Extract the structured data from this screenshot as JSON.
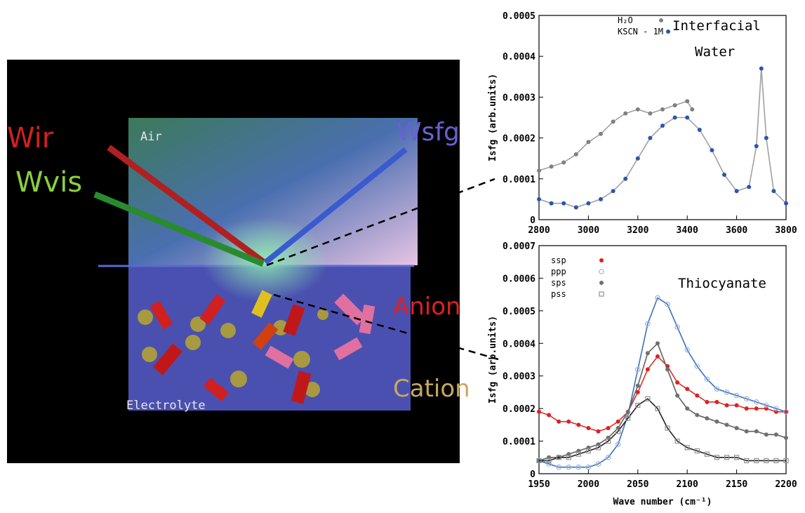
{
  "illustration": {
    "wir": "Wir",
    "wvis": "Wvis",
    "wsfg": "Wsfg",
    "air": "Air",
    "electrolyte": "Electrolyte",
    "anion": "Anion",
    "cation": "Cation"
  },
  "chart_data": [
    {
      "type": "scatter",
      "ylabel": "Isfg (arb.units)",
      "annotations": [
        "Interfacial",
        "Water"
      ],
      "xlim": [
        2800,
        3800
      ],
      "xticks": [
        2800,
        3000,
        3200,
        3400,
        3600,
        3800
      ],
      "ylim": [
        0,
        0.0005
      ],
      "yticks": [
        0,
        0.0001,
        0.0002,
        0.0003,
        0.0004,
        0.0005
      ],
      "series": [
        {
          "name": "H₂O",
          "color": "#808080",
          "marker": "circle",
          "line_color": "#a0a0a0",
          "x": [
            2800,
            2850,
            2900,
            2950,
            3000,
            3050,
            3100,
            3150,
            3200,
            3250,
            3300,
            3350,
            3400,
            3420
          ],
          "values": [
            0.00012,
            0.00013,
            0.00014,
            0.00016,
            0.00019,
            0.00021,
            0.00024,
            0.00026,
            0.00027,
            0.00026,
            0.00027,
            0.00028,
            0.00029,
            0.00027
          ]
        },
        {
          "name": "KSCN - 1M",
          "color": "#2a55b0",
          "marker": "circle",
          "line_color": "#a0a0a0",
          "x": [
            2800,
            2850,
            2900,
            2950,
            3000,
            3050,
            3100,
            3150,
            3200,
            3250,
            3300,
            3350,
            3400,
            3450,
            3500,
            3550,
            3600,
            3650,
            3680,
            3700,
            3720,
            3750,
            3800
          ],
          "values": [
            5e-05,
            4e-05,
            4e-05,
            3e-05,
            4e-05,
            5e-05,
            7e-05,
            0.0001,
            0.00015,
            0.0002,
            0.00023,
            0.00025,
            0.00025,
            0.00022,
            0.00017,
            0.00011,
            7e-05,
            8e-05,
            0.00018,
            0.00037,
            0.0002,
            7e-05,
            4e-05
          ]
        }
      ]
    },
    {
      "type": "scatter",
      "xlabel": "Wave number (cm⁻¹)",
      "ylabel": "Isfg (arb.units)",
      "annotations": [
        "Thiocyanate"
      ],
      "xlim": [
        1950,
        2200
      ],
      "xticks": [
        1950,
        2000,
        2050,
        2100,
        2150,
        2200
      ],
      "ylim": [
        0,
        0.0007
      ],
      "yticks": [
        0,
        0.0001,
        0.0002,
        0.0003,
        0.0004,
        0.0005,
        0.0006,
        0.0007
      ],
      "x": [
        1950,
        1960,
        1970,
        1980,
        1990,
        2000,
        2010,
        2020,
        2030,
        2040,
        2050,
        2060,
        2070,
        2080,
        2090,
        2100,
        2110,
        2120,
        2130,
        2140,
        2150,
        2160,
        2170,
        2180,
        2190,
        2200
      ],
      "series": [
        {
          "name": "ssp",
          "color": "#e02020",
          "marker": "circle",
          "line_color": "#d83030",
          "values": [
            0.00019,
            0.00018,
            0.00016,
            0.00016,
            0.00015,
            0.00014,
            0.00013,
            0.00014,
            0.00016,
            0.00019,
            0.00025,
            0.00032,
            0.00036,
            0.00033,
            0.00028,
            0.00026,
            0.00024,
            0.00022,
            0.00022,
            0.00021,
            0.00021,
            0.0002,
            0.0002,
            0.0002,
            0.00019,
            0.00019
          ]
        },
        {
          "name": "ppp",
          "color": "#9bb5d8",
          "marker": "open-circle",
          "line_color": "#3a6fc0",
          "values": [
            4e-05,
            3e-05,
            2e-05,
            2e-05,
            2e-05,
            2e-05,
            3e-05,
            5e-05,
            9e-05,
            0.00018,
            0.00032,
            0.00046,
            0.00054,
            0.00052,
            0.00045,
            0.00038,
            0.00033,
            0.00029,
            0.00026,
            0.00025,
            0.00024,
            0.00023,
            0.00022,
            0.00021,
            0.0002,
            0.00019
          ]
        },
        {
          "name": "sps",
          "color": "#707070",
          "marker": "circle",
          "line_color": "#606060",
          "values": [
            4e-05,
            5e-05,
            5e-05,
            6e-05,
            7e-05,
            8e-05,
            9e-05,
            0.00011,
            0.00014,
            0.00019,
            0.00027,
            0.00037,
            0.0004,
            0.00032,
            0.00024,
            0.0002,
            0.00018,
            0.00017,
            0.00016,
            0.00015,
            0.00014,
            0.00013,
            0.00013,
            0.00012,
            0.00012,
            0.00011
          ]
        },
        {
          "name": "pss",
          "color": "#909090",
          "marker": "open-square",
          "line_color": "#202020",
          "values": [
            4e-05,
            4e-05,
            5e-05,
            5e-05,
            6e-05,
            7e-05,
            8e-05,
            0.0001,
            0.00013,
            0.00017,
            0.00021,
            0.00023,
            0.0002,
            0.00014,
            0.0001,
            8e-05,
            7e-05,
            6e-05,
            5e-05,
            5e-05,
            5e-05,
            4e-05,
            4e-05,
            4e-05,
            4e-05,
            4e-05
          ]
        }
      ]
    }
  ]
}
